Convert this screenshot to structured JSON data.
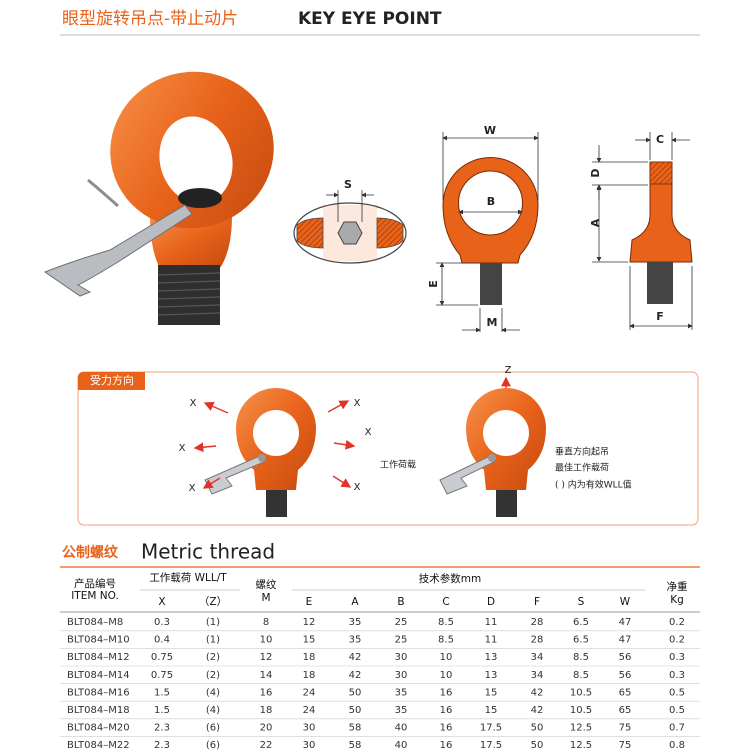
{
  "header": {
    "title_cn": "眼型旋转吊点-带止动片",
    "title_en": "KEY EYE POINT"
  },
  "diagrams": {
    "section_view": {
      "s": "S"
    },
    "front_view": {
      "w": "W",
      "b": "B",
      "e": "E",
      "m": "M"
    },
    "side_view": {
      "c": "C",
      "d": "D",
      "a": "A",
      "f": "F"
    }
  },
  "force_directions": {
    "title": "受力方向",
    "x_labels": [
      "X",
      "X",
      "X",
      "X",
      "X",
      "X"
    ],
    "z_label": "Z",
    "load_label": "工作荷载",
    "notes": [
      "垂直方向起吊",
      "最佳工作载荷",
      "( ) 内为有效WLL值"
    ]
  },
  "section": {
    "title_cn": "公制螺纹",
    "title_en": "Metric thread"
  },
  "table": {
    "header": {
      "item_cn": "产品编号",
      "item_en": "ITEM NO.",
      "wll": "工作载荷 WLL/T",
      "x": "X",
      "z": "（Z）",
      "thread_cn": "螺纹",
      "thread_en": "M",
      "tech": "技术参数mm",
      "dims": [
        "E",
        "A",
        "B",
        "C",
        "D",
        "F",
        "S",
        "W"
      ],
      "weight_cn": "净重",
      "weight_en": "Kg"
    },
    "rows": [
      [
        "BLT084–M8",
        "0.3",
        "(1)",
        "8",
        "12",
        "35",
        "25",
        "8.5",
        "11",
        "28",
        "6.5",
        "47",
        "0.2"
      ],
      [
        "BLT084–M10",
        "0.4",
        "(1)",
        "10",
        "15",
        "35",
        "25",
        "8.5",
        "11",
        "28",
        "6.5",
        "47",
        "0.2"
      ],
      [
        "BLT084–M12",
        "0.75",
        "(2)",
        "12",
        "18",
        "42",
        "30",
        "10",
        "13",
        "34",
        "8.5",
        "56",
        "0.3"
      ],
      [
        "BLT084–M14",
        "0.75",
        "(2)",
        "14",
        "18",
        "42",
        "30",
        "10",
        "13",
        "34",
        "8.5",
        "56",
        "0.3"
      ],
      [
        "BLT084–M16",
        "1.5",
        "(4)",
        "16",
        "24",
        "50",
        "35",
        "16",
        "15",
        "42",
        "10.5",
        "65",
        "0.5"
      ],
      [
        "BLT084–M18",
        "1.5",
        "(4)",
        "18",
        "24",
        "50",
        "35",
        "16",
        "15",
        "42",
        "10.5",
        "65",
        "0.5"
      ],
      [
        "BLT084–M20",
        "2.3",
        "(6)",
        "20",
        "30",
        "58",
        "40",
        "16",
        "17.5",
        "50",
        "12.5",
        "75",
        "0.7"
      ],
      [
        "BLT084–M22",
        "2.3",
        "(6)",
        "22",
        "30",
        "58",
        "40",
        "16",
        "17.5",
        "50",
        "12.5",
        "75",
        "0.8"
      ]
    ]
  }
}
